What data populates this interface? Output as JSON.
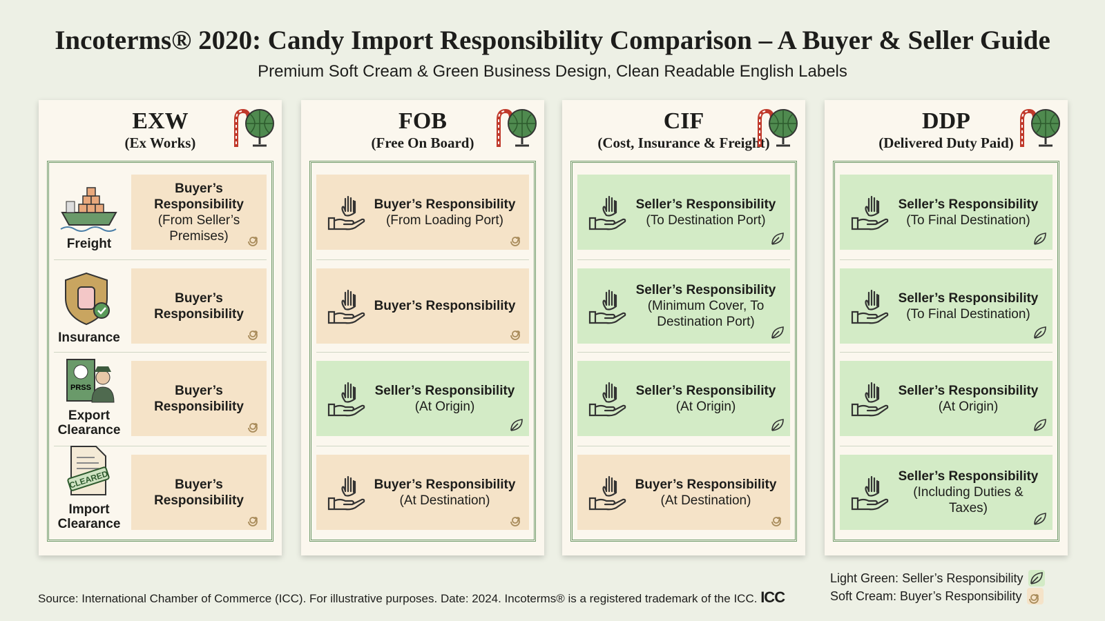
{
  "header": {
    "title": "Incoterms® 2020: Candy Import Responsibility Comparison – A Buyer & Seller Guide",
    "subtitle": "Premium Soft Cream & Green Business Design, Clean Readable English Labels"
  },
  "row_labels": [
    "Freight",
    "Insurance",
    "Export Clearance",
    "Import Clearance"
  ],
  "columns": [
    {
      "code": "EXW",
      "name": "(Ex Works)",
      "cells": [
        {
          "title": "Buyer’s Responsibility",
          "detail": "(From Seller’s Premises)",
          "color": "#f5e3c8"
        },
        {
          "title": "Buyer’s Responsibility",
          "color": "#f5e3c8"
        },
        {
          "title": "Buyer’s Responsibility",
          "color": "#f5e3c8"
        },
        {
          "title": "Buyer’s Responsibility",
          "color": "#f5e3c8"
        }
      ]
    },
    {
      "code": "FOB",
      "name": "(Free On Board)",
      "cells": [
        {
          "title": "Buyer’s Responsibility",
          "detail": "(From Loading Port)",
          "color": "#f5e3c8"
        },
        {
          "title": "Buyer’s Responsibility",
          "color": "#f5e3c8"
        },
        {
          "title": "Seller’s Responsibility",
          "detail": "(At Origin)",
          "color": "#d3ebc6"
        },
        {
          "title": "Buyer’s Responsibility",
          "detail": "(At Destination)",
          "color": "#f5e3c8"
        }
      ]
    },
    {
      "code": "CIF",
      "name": "(Cost, Insurance & Freight)",
      "cells": [
        {
          "title": "Seller’s Responsibility",
          "detail": "(To Destination Port)",
          "color": "#d3ebc6"
        },
        {
          "title": "Seller’s Responsibility",
          "detail": "(Minimum Cover, To Destination Port)",
          "color": "#d3ebc6"
        },
        {
          "title": "Seller’s Responsibility",
          "detail": "(At Origin)",
          "color": "#d3ebc6"
        },
        {
          "title": "Buyer’s Responsibility",
          "detail": "(At Destination)",
          "color": "#f5e3c8"
        }
      ]
    },
    {
      "code": "DDP",
      "name": "(Delivered Duty Paid)",
      "cells": [
        {
          "title": "Seller’s Responsibility",
          "detail": "(To Final Destination)",
          "color": "#d3ebc6"
        },
        {
          "title": "Seller’s Responsibility",
          "detail": "(To Final Destination)",
          "color": "#d3ebc6"
        },
        {
          "title": "Seller’s Responsibility",
          "detail": "(At Origin)",
          "color": "#d3ebc6"
        },
        {
          "title": "Seller’s Responsibility",
          "detail": "(Including Duties & Taxes)",
          "color": "#d3ebc6"
        }
      ]
    }
  ],
  "legend": [
    {
      "label": "Light Green: Seller’s Responsibility",
      "color": "#d3ebc6"
    },
    {
      "label": "Soft Cream: Buyer’s Responsibility",
      "color": "#f5e3c8"
    }
  ],
  "footer": {
    "source": "Source: International Chamber of Commerce (ICC). For illustrative purposes. Date: 2024. Incoterms® is a registered trademark of the ICC.",
    "logo": "ICC"
  }
}
